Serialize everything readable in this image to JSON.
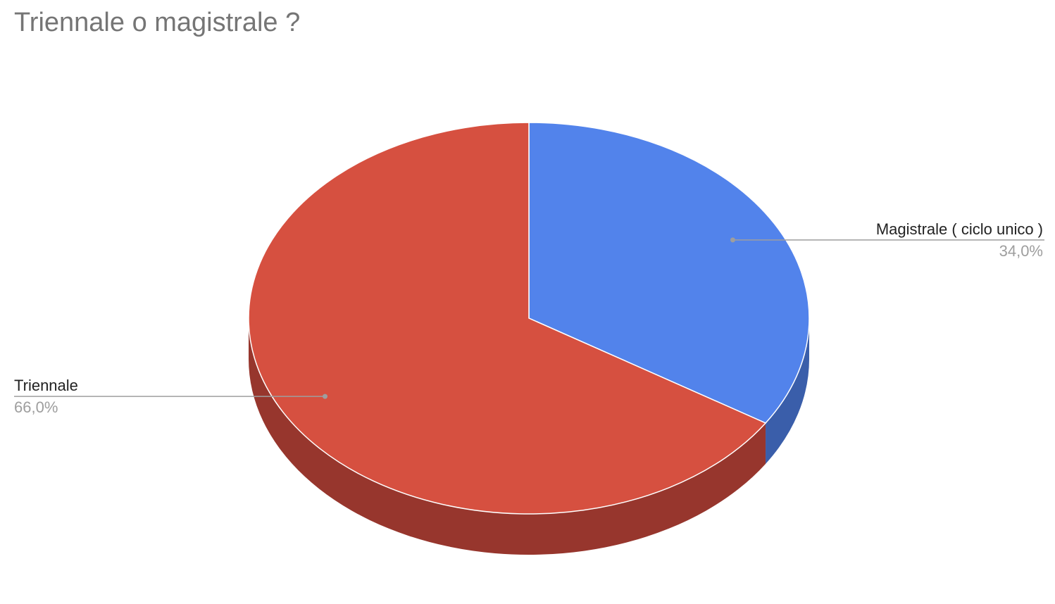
{
  "chart_data": {
    "type": "pie",
    "title": "Triennale o magistrale ?",
    "slices": [
      {
        "label": "Magistrale ( ciclo unico )",
        "value": 34.0,
        "percent_label": "34,0%",
        "color": "#5283EB",
        "side_color": "#3A5EAA"
      },
      {
        "label": "Triennale",
        "value": 66.0,
        "percent_label": "66,0%",
        "color": "#D65040",
        "side_color": "#97362D"
      }
    ],
    "style": "3d",
    "legend": "none",
    "label_placement": "outside-with-leader-lines"
  }
}
